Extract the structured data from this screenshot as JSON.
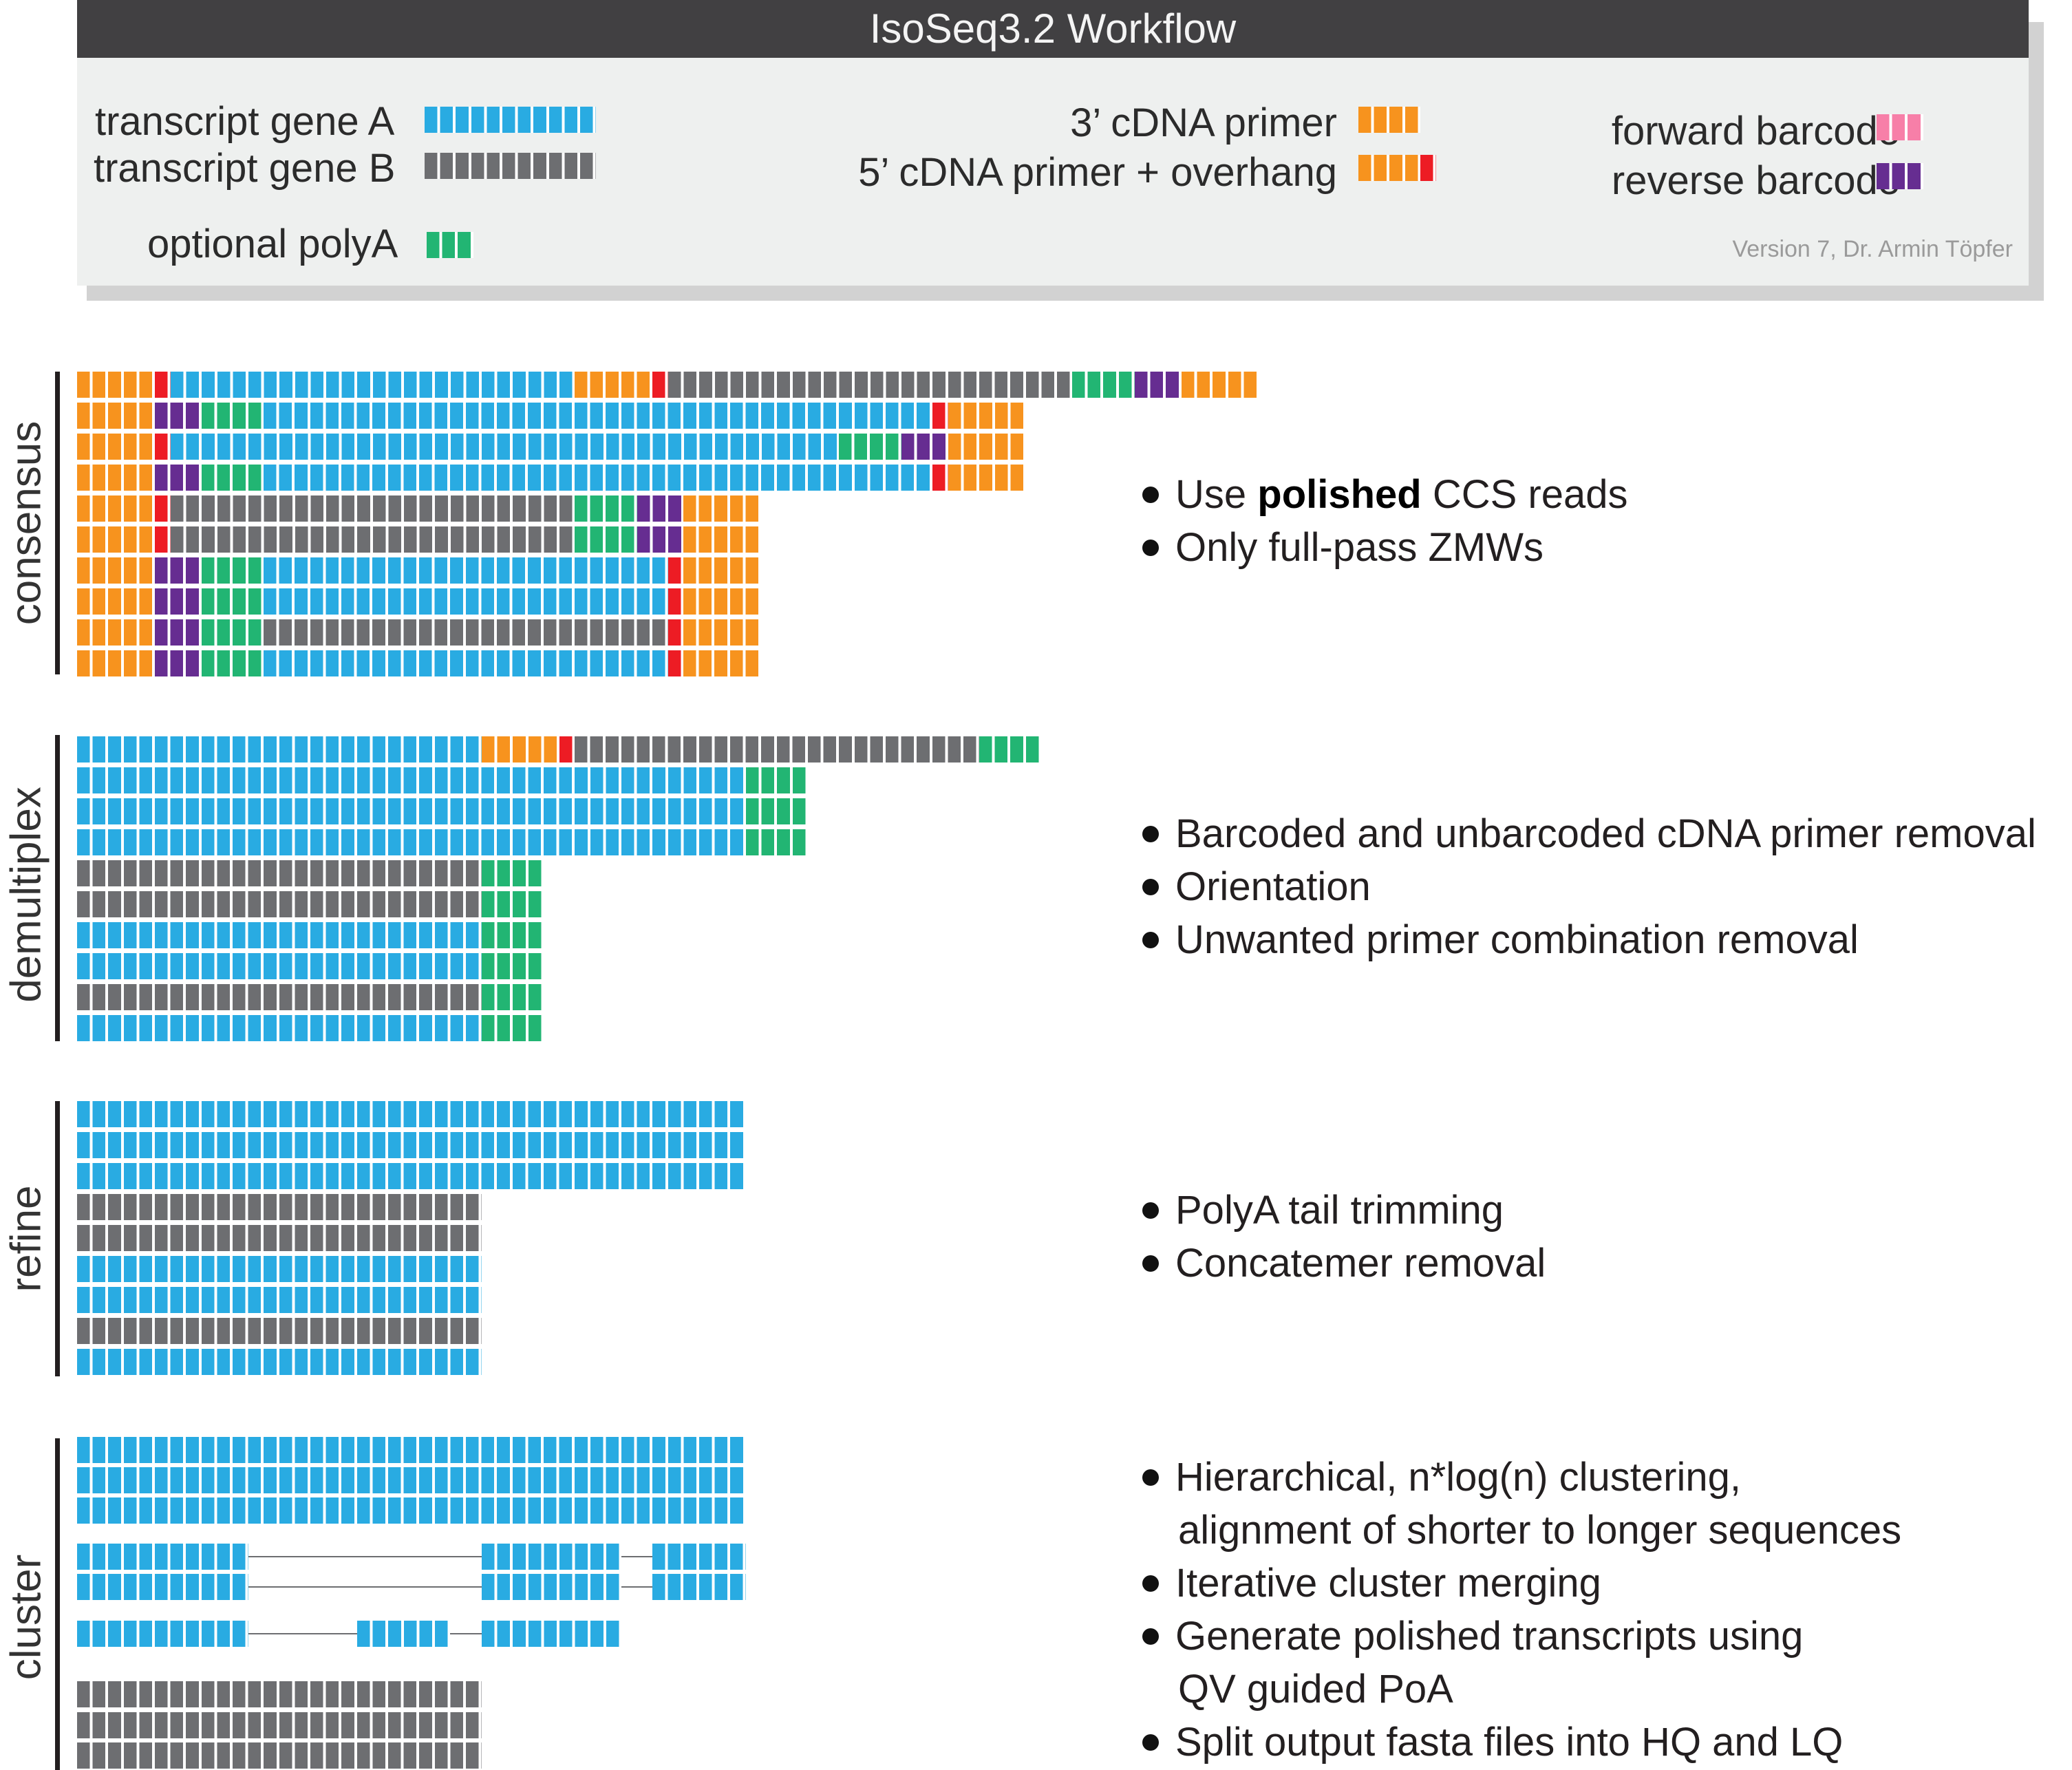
{
  "title": "IsoSeq3.2 Workflow",
  "version_note": "Version 7, Dr. Armin Töpfer",
  "colors": {
    "geneA": "#29abe2",
    "geneB": "#6d6e71",
    "polyA": "#22b573",
    "primer3": "#f7931e",
    "overhang": "#ed1c24",
    "fwdBarcode": "#f77fa8",
    "revBarcode": "#662d91",
    "cell_gap": "#ffffff"
  },
  "legend": {
    "geneA": "transcript gene A",
    "geneB": "transcript gene B",
    "polyA": "optional polyA",
    "primer3": "3’ cDNA primer",
    "primer5": "5’ cDNA primer + overhang",
    "fwdBarcode": "forward barcode",
    "revBarcode": "reverse barcode"
  },
  "sections": [
    {
      "label": "consensus",
      "bullets": [
        {
          "pre": "Use ",
          "bold": "polished",
          "post": " CCS reads"
        },
        {
          "text": "Only full-pass ZMWs"
        }
      ]
    },
    {
      "label": "demultiplex",
      "bullets": [
        {
          "text": "Barcoded and unbarcoded cDNA primer removal"
        },
        {
          "text": "Orientation"
        },
        {
          "text": "Unwanted primer combination removal"
        }
      ]
    },
    {
      "label": "refine",
      "bullets": [
        {
          "text": "PolyA tail trimming"
        },
        {
          "text": "Concatemer removal"
        }
      ]
    },
    {
      "label": "cluster",
      "bullets": [
        {
          "text": "Hierarchical, n*log(n) clustering,"
        },
        {
          "text": "alignment of shorter to longer sequences",
          "continuation": true
        },
        {
          "text": "Iterative cluster merging"
        },
        {
          "text": "Generate polished transcripts using"
        },
        {
          "text": "QV guided PoA",
          "continuation": true
        },
        {
          "text": "Split output fasta files into HQ and LQ"
        }
      ]
    }
  ],
  "reads": {
    "consensus": [
      [
        [
          "primer3",
          5
        ],
        [
          "overhang",
          1
        ],
        [
          "geneA",
          26
        ],
        [
          "primer3",
          5
        ],
        [
          "overhang",
          1
        ],
        [
          "geneB",
          26
        ],
        [
          "polyA",
          4
        ],
        [
          "revBarcode",
          3
        ],
        [
          "primer3",
          5
        ]
      ],
      [
        [
          "primer3",
          5
        ],
        [
          "revBarcode",
          3
        ],
        [
          "polyA",
          4
        ],
        [
          "geneA",
          43
        ],
        [
          "overhang",
          1
        ],
        [
          "primer3",
          5
        ]
      ],
      [
        [
          "primer3",
          5
        ],
        [
          "overhang",
          1
        ],
        [
          "geneA",
          43
        ],
        [
          "polyA",
          4
        ],
        [
          "revBarcode",
          3
        ],
        [
          "primer3",
          5
        ]
      ],
      [
        [
          "primer3",
          5
        ],
        [
          "revBarcode",
          3
        ],
        [
          "polyA",
          4
        ],
        [
          "geneA",
          43
        ],
        [
          "overhang",
          1
        ],
        [
          "primer3",
          5
        ]
      ],
      [
        [
          "primer3",
          5
        ],
        [
          "overhang",
          1
        ],
        [
          "geneB",
          26
        ],
        [
          "polyA",
          4
        ],
        [
          "revBarcode",
          3
        ],
        [
          "primer3",
          5
        ]
      ],
      [
        [
          "primer3",
          5
        ],
        [
          "overhang",
          1
        ],
        [
          "geneB",
          26
        ],
        [
          "polyA",
          4
        ],
        [
          "revBarcode",
          3
        ],
        [
          "primer3",
          5
        ]
      ],
      [
        [
          "primer3",
          5
        ],
        [
          "revBarcode",
          3
        ],
        [
          "polyA",
          4
        ],
        [
          "geneA",
          26
        ],
        [
          "overhang",
          1
        ],
        [
          "primer3",
          5
        ]
      ],
      [
        [
          "primer3",
          5
        ],
        [
          "revBarcode",
          3
        ],
        [
          "polyA",
          4
        ],
        [
          "geneA",
          26
        ],
        [
          "overhang",
          1
        ],
        [
          "primer3",
          5
        ]
      ],
      [
        [
          "primer3",
          5
        ],
        [
          "revBarcode",
          3
        ],
        [
          "polyA",
          4
        ],
        [
          "geneB",
          26
        ],
        [
          "overhang",
          1
        ],
        [
          "primer3",
          5
        ]
      ],
      [
        [
          "primer3",
          5
        ],
        [
          "revBarcode",
          3
        ],
        [
          "polyA",
          4
        ],
        [
          "geneA",
          26
        ],
        [
          "overhang",
          1
        ],
        [
          "primer3",
          5
        ]
      ]
    ],
    "demultiplex": [
      [
        [
          "geneA",
          26
        ],
        [
          "primer3",
          5
        ],
        [
          "overhang",
          1
        ],
        [
          "geneB",
          26
        ],
        [
          "polyA",
          4
        ]
      ],
      [
        [
          "geneA",
          43
        ],
        [
          "polyA",
          4
        ]
      ],
      [
        [
          "geneA",
          43
        ],
        [
          "polyA",
          4
        ]
      ],
      [
        [
          "geneA",
          43
        ],
        [
          "polyA",
          4
        ]
      ],
      [
        [
          "geneB",
          26
        ],
        [
          "polyA",
          4
        ]
      ],
      [
        [
          "geneB",
          26
        ],
        [
          "polyA",
          4
        ]
      ],
      [
        [
          "geneA",
          26
        ],
        [
          "polyA",
          4
        ]
      ],
      [
        [
          "geneA",
          26
        ],
        [
          "polyA",
          4
        ]
      ],
      [
        [
          "geneB",
          26
        ],
        [
          "polyA",
          4
        ]
      ],
      [
        [
          "geneA",
          26
        ],
        [
          "polyA",
          4
        ]
      ]
    ],
    "refine": [
      [
        [
          "geneA",
          43
        ]
      ],
      [
        [
          "geneA",
          43
        ]
      ],
      [
        [
          "geneA",
          43
        ]
      ],
      [
        [
          "geneB",
          26
        ]
      ],
      [
        [
          "geneB",
          26
        ]
      ],
      [
        [
          "geneA",
          26
        ]
      ],
      [
        [
          "geneA",
          26
        ]
      ],
      [
        [
          "geneB",
          26
        ]
      ],
      [
        [
          "geneA",
          26
        ]
      ]
    ],
    "cluster": [
      [
        [
          "geneA",
          43
        ]
      ],
      [
        [
          "geneA",
          43
        ]
      ],
      [
        [
          "geneA",
          43
        ]
      ],
      [
        [
          "geneA",
          11
        ],
        [
          "intron",
          15
        ],
        [
          "geneA",
          9
        ],
        [
          "intron",
          2
        ],
        [
          "geneA",
          6
        ]
      ],
      [
        [
          "geneA",
          11
        ],
        [
          "intron",
          15
        ],
        [
          "geneA",
          9
        ],
        [
          "intron",
          2
        ],
        [
          "geneA",
          6
        ]
      ],
      [
        [
          "geneA",
          11
        ],
        [
          "intron",
          7
        ],
        [
          "geneA",
          6
        ],
        [
          "intron",
          2
        ],
        [
          "geneA",
          9
        ]
      ],
      [
        [
          "geneB",
          26
        ]
      ],
      [
        [
          "geneB",
          26
        ]
      ],
      [
        [
          "geneB",
          26
        ]
      ]
    ]
  }
}
